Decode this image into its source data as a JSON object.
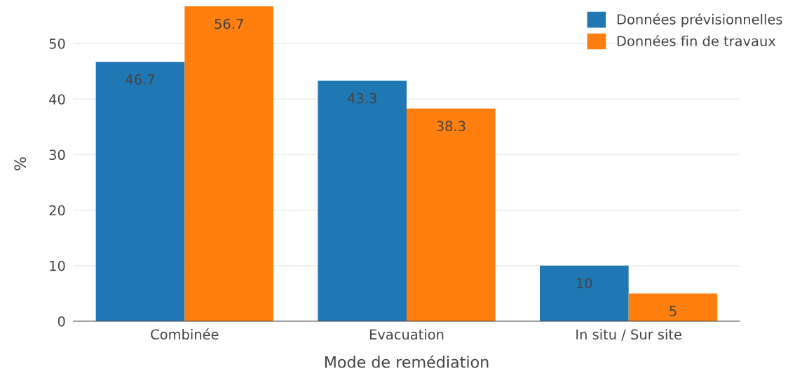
{
  "chart_data": {
    "type": "bar",
    "xlabel": "Mode de remédiation",
    "ylabel": "%",
    "categories": [
      "Combinée",
      "Evacuation",
      "In situ / Sur site"
    ],
    "series": [
      {
        "name": "Données prévisionnelles",
        "color": "#1f77b4",
        "values": [
          46.7,
          43.3,
          10
        ]
      },
      {
        "name": "Données fin de travaux",
        "color": "#ff7f0e",
        "values": [
          56.7,
          38.3,
          5
        ]
      }
    ],
    "ylim": [
      0,
      56.7
    ],
    "yticks": [
      0,
      10,
      20,
      30,
      40,
      50
    ],
    "grid": "y",
    "legend": "top right",
    "data_labels": true
  }
}
